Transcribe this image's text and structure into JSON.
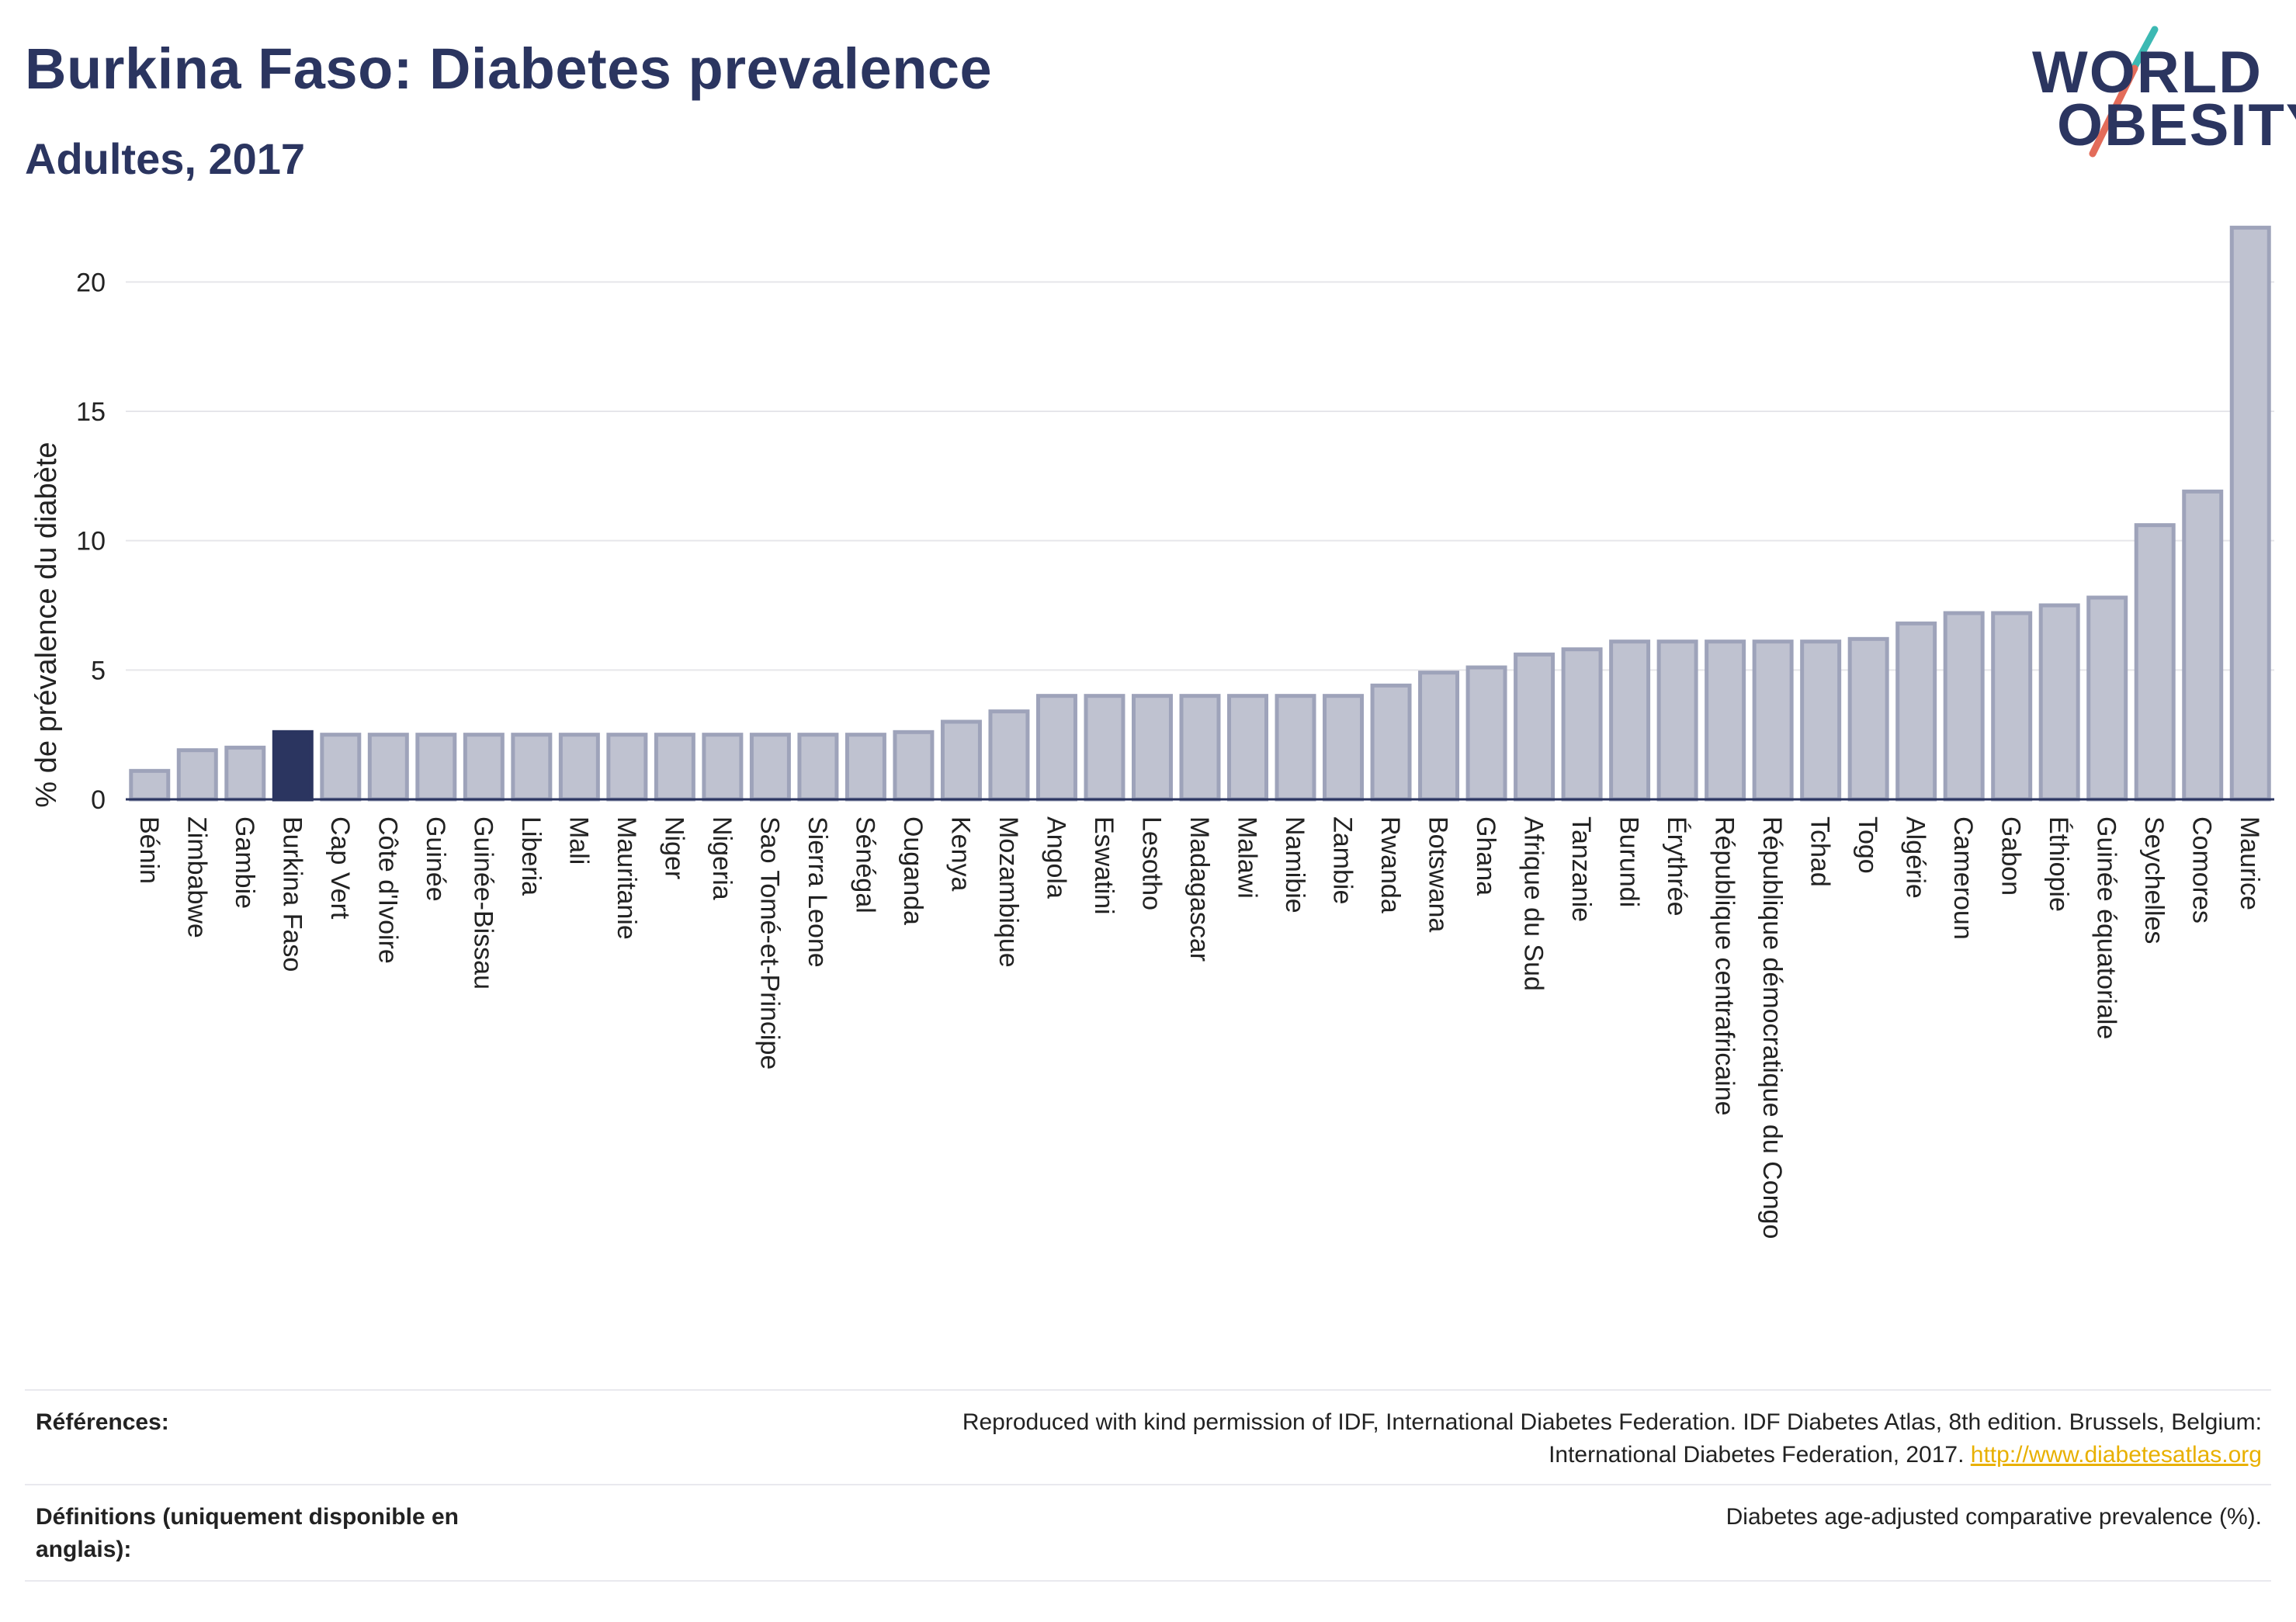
{
  "header": {
    "title": "Burkina Faso: Diabetes prevalence",
    "subtitle": "Adultes, 2017"
  },
  "logo": {
    "line1": "WORLD",
    "line2": "OBESITY",
    "accent_teal": "#3cb9b3",
    "accent_coral": "#e36c5a"
  },
  "colors": {
    "bar": "#bfc2d0",
    "bar_border": "#9ea3ba",
    "highlight": "#2b3560",
    "grid": "#e6e6ea",
    "axis": "#2b3560"
  },
  "chart_data": {
    "type": "bar",
    "title": "Burkina Faso: Diabetes prevalence",
    "subtitle": "Adultes, 2017",
    "ylabel": "% de prévalence du diabète",
    "xlabel": "",
    "ylim": [
      0,
      22.5
    ],
    "yticks": [
      0,
      5,
      10,
      15,
      20
    ],
    "grid": true,
    "highlight": "Burkina Faso",
    "categories": [
      "Bénin",
      "Zimbabwe",
      "Gambie",
      "Burkina Faso",
      "Cap Vert",
      "Côte d'Ivoire",
      "Guinée",
      "Guinée-Bissau",
      "Liberia",
      "Mali",
      "Mauritanie",
      "Niger",
      "Nigeria",
      "Sao Tomé-et-Principe",
      "Sierra Leone",
      "Sénégal",
      "Ouganda",
      "Kenya",
      "Mozambique",
      "Angola",
      "Eswatini",
      "Lesotho",
      "Madagascar",
      "Malawi",
      "Namibie",
      "Zambie",
      "Rwanda",
      "Botswana",
      "Ghana",
      "Afrique du Sud",
      "Tanzanie",
      "Burundi",
      "Érythrée",
      "République centrafricaine",
      "République démocratique du Congo",
      "Tchad",
      "Togo",
      "Algérie",
      "Cameroun",
      "Gabon",
      "Éthiopie",
      "Guinée équatoriale",
      "Seychelles",
      "Comores",
      "Maurice"
    ],
    "values": [
      1.1,
      1.9,
      2.0,
      2.6,
      2.5,
      2.5,
      2.5,
      2.5,
      2.5,
      2.5,
      2.5,
      2.5,
      2.5,
      2.5,
      2.5,
      2.5,
      2.6,
      3.0,
      3.4,
      4.0,
      4.0,
      4.0,
      4.0,
      4.0,
      4.0,
      4.0,
      4.4,
      4.9,
      5.1,
      5.6,
      5.8,
      6.1,
      6.1,
      6.1,
      6.1,
      6.1,
      6.2,
      6.8,
      7.2,
      7.2,
      7.5,
      7.8,
      10.6,
      11.9,
      22.1
    ]
  },
  "footer": {
    "references_label": "Références:",
    "references_text_1": "Reproduced with kind permission of IDF, International Diabetes Federation. IDF Diabetes Atlas, 8th edition. Brussels, Belgium:",
    "references_text_2": "International Diabetes Federation, 2017.",
    "references_link": "http://www.diabetesatlas.org",
    "definitions_label": "Définitions (uniquement disponible en anglais):",
    "definitions_text": "Diabetes age-adjusted comparative prevalence (%)."
  }
}
